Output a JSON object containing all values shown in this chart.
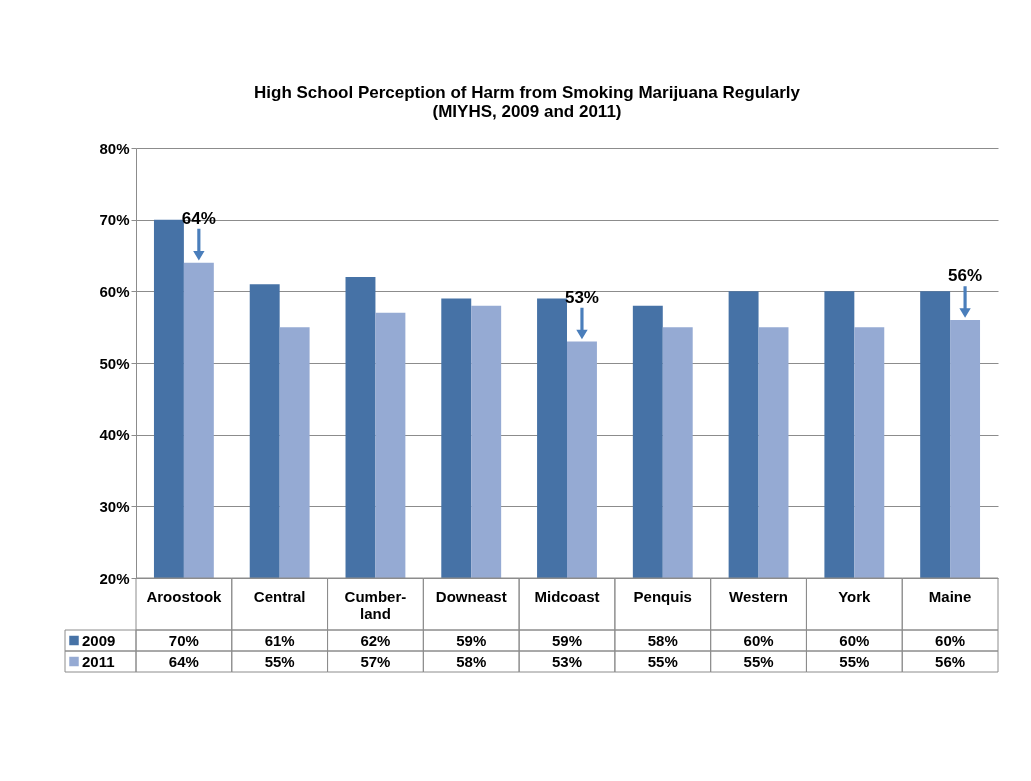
{
  "chart_data": {
    "type": "bar",
    "title": "High School Perception of Harm from Smoking Marijuana Regularly",
    "subtitle": "(MIYHS, 2009 and 2011)",
    "categories": [
      "Aroostook",
      "Central",
      "Cumber-land",
      "Downeast",
      "Midcoast",
      "Penquis",
      "Western",
      "York",
      "Maine"
    ],
    "series": [
      {
        "name": "2009",
        "color": "#4672a6",
        "values": [
          70,
          61,
          62,
          59,
          59,
          58,
          60,
          60,
          60
        ],
        "value_labels": [
          "70%",
          "61%",
          "62%",
          "59%",
          "59%",
          "58%",
          "60%",
          "60%",
          "60%"
        ]
      },
      {
        "name": "2011",
        "color": "#95aad3",
        "values": [
          64,
          55,
          57,
          58,
          53,
          55,
          55,
          55,
          56
        ],
        "value_labels": [
          "64%",
          "55%",
          "57%",
          "58%",
          "53%",
          "55%",
          "55%",
          "55%",
          "56%"
        ]
      }
    ],
    "ylim": [
      20,
      80
    ],
    "yticks": [
      {
        "value": 20,
        "label": "20%"
      },
      {
        "value": 30,
        "label": "30%"
      },
      {
        "value": 40,
        "label": "40%"
      },
      {
        "value": 50,
        "label": "50%"
      },
      {
        "value": 60,
        "label": "60%"
      },
      {
        "value": 70,
        "label": "70%"
      },
      {
        "value": 80,
        "label": "80%"
      }
    ],
    "grid": "y",
    "legend": "bottom left",
    "annotations": [
      {
        "text": "64%",
        "x": "Aroostook",
        "y": 64
      },
      {
        "text": "53%",
        "x": "Midcoast",
        "y": 53
      },
      {
        "text": "56%",
        "x": "Maine",
        "y": 56
      }
    ]
  }
}
